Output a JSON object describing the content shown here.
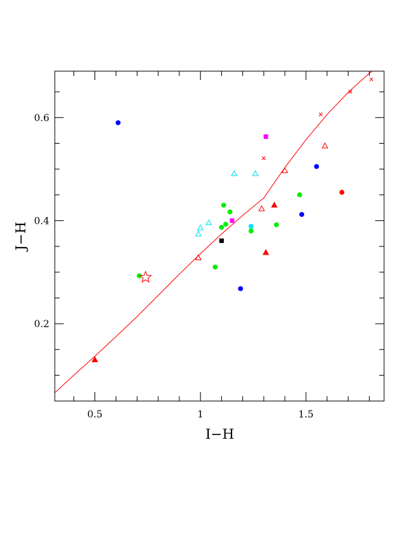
{
  "chart_data": {
    "type": "scatter",
    "title": "",
    "xlabel": "I−H",
    "ylabel": "J−H",
    "xlim": [
      0.31,
      1.87
    ],
    "ylim": [
      0.05,
      0.69
    ],
    "x_ticks": [
      0.5,
      1,
      1.5
    ],
    "x_tick_labels": [
      "0.5",
      "1",
      "1.5"
    ],
    "y_ticks": [
      0.2,
      0.4,
      0.6
    ],
    "y_tick_labels": [
      "0.2",
      "0.4",
      "0.6"
    ],
    "grid": false,
    "colors": {
      "red": "#ff0000",
      "blue": "#0000ff",
      "green": "#00ee00",
      "cyan": "#00e5ee",
      "magenta": "#ff00ff",
      "black": "#000000"
    },
    "curve": {
      "color": "red",
      "x": [
        0.31,
        0.4,
        0.5,
        0.6,
        0.7,
        0.8,
        0.9,
        1.0,
        1.1,
        1.2,
        1.3,
        1.4,
        1.5,
        1.6,
        1.7,
        1.8,
        1.87
      ],
      "y": [
        0.066,
        0.1,
        0.137,
        0.175,
        0.214,
        0.255,
        0.296,
        0.336,
        0.374,
        0.41,
        0.444,
        0.503,
        0.557,
        0.606,
        0.649,
        0.686,
        0.704
      ]
    },
    "curve_markers": {
      "shape": "x",
      "color": "red",
      "points": [
        [
          1.3,
          0.521
        ],
        [
          1.57,
          0.606
        ],
        [
          1.71,
          0.65
        ],
        [
          1.81,
          0.674
        ]
      ]
    },
    "reference_point": {
      "shape": "star-open",
      "color": "red",
      "point": [
        0.74,
        0.29
      ]
    },
    "series": [
      {
        "shape": "circle",
        "color": "blue",
        "points": [
          [
            0.61,
            0.59
          ],
          [
            1.19,
            0.268
          ],
          [
            1.48,
            0.412
          ],
          [
            1.55,
            0.505
          ]
        ]
      },
      {
        "shape": "circle",
        "color": "green",
        "points": [
          [
            0.71,
            0.293
          ],
          [
            1.07,
            0.31
          ],
          [
            1.1,
            0.387
          ],
          [
            1.11,
            0.43
          ],
          [
            1.12,
            0.393
          ],
          [
            1.14,
            0.417
          ],
          [
            1.24,
            0.38
          ],
          [
            1.36,
            0.392
          ],
          [
            1.47,
            0.45
          ]
        ]
      },
      {
        "shape": "circle",
        "color": "cyan",
        "points": [
          [
            1.24,
            0.389
          ]
        ]
      },
      {
        "shape": "circle",
        "color": "red",
        "points": [
          [
            1.67,
            0.455
          ]
        ]
      },
      {
        "shape": "square",
        "color": "magenta",
        "points": [
          [
            1.15,
            0.4
          ],
          [
            1.31,
            0.563
          ]
        ]
      },
      {
        "shape": "square",
        "color": "black",
        "points": [
          [
            1.1,
            0.361
          ]
        ]
      },
      {
        "shape": "triangle-filled",
        "color": "red",
        "points": [
          [
            0.5,
            0.13
          ],
          [
            1.31,
            0.338
          ],
          [
            1.35,
            0.43
          ]
        ]
      },
      {
        "shape": "triangle-open",
        "color": "red",
        "points": [
          [
            0.99,
            0.328
          ],
          [
            1.29,
            0.423
          ],
          [
            1.4,
            0.497
          ],
          [
            1.59,
            0.545
          ]
        ]
      },
      {
        "shape": "triangle-open",
        "color": "cyan",
        "points": [
          [
            0.99,
            0.374
          ],
          [
            1.0,
            0.386
          ],
          [
            1.04,
            0.396
          ],
          [
            1.16,
            0.491
          ],
          [
            1.26,
            0.491
          ]
        ]
      }
    ]
  }
}
